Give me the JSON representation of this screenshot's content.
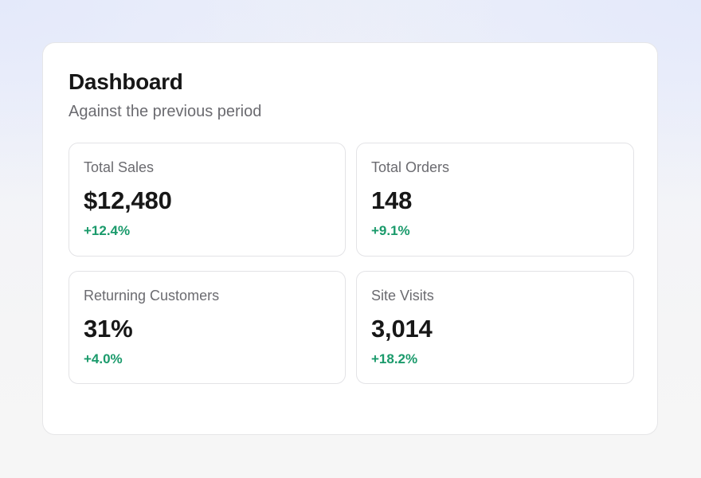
{
  "dashboard": {
    "title": "Dashboard",
    "subtitle": "Against the previous period",
    "stats": [
      {
        "label": "Total Sales",
        "value": "$12,480",
        "delta": "+12.4%"
      },
      {
        "label": "Total Orders",
        "value": "148",
        "delta": "+9.1%"
      },
      {
        "label": "Returning Customers",
        "value": "31%",
        "delta": "+4.0%"
      },
      {
        "label": "Site Visits",
        "value": "3,014",
        "delta": "+18.2%"
      }
    ]
  },
  "colors": {
    "positive": "#1a9a6b",
    "text": "#171717",
    "muted": "#6b6b70"
  }
}
